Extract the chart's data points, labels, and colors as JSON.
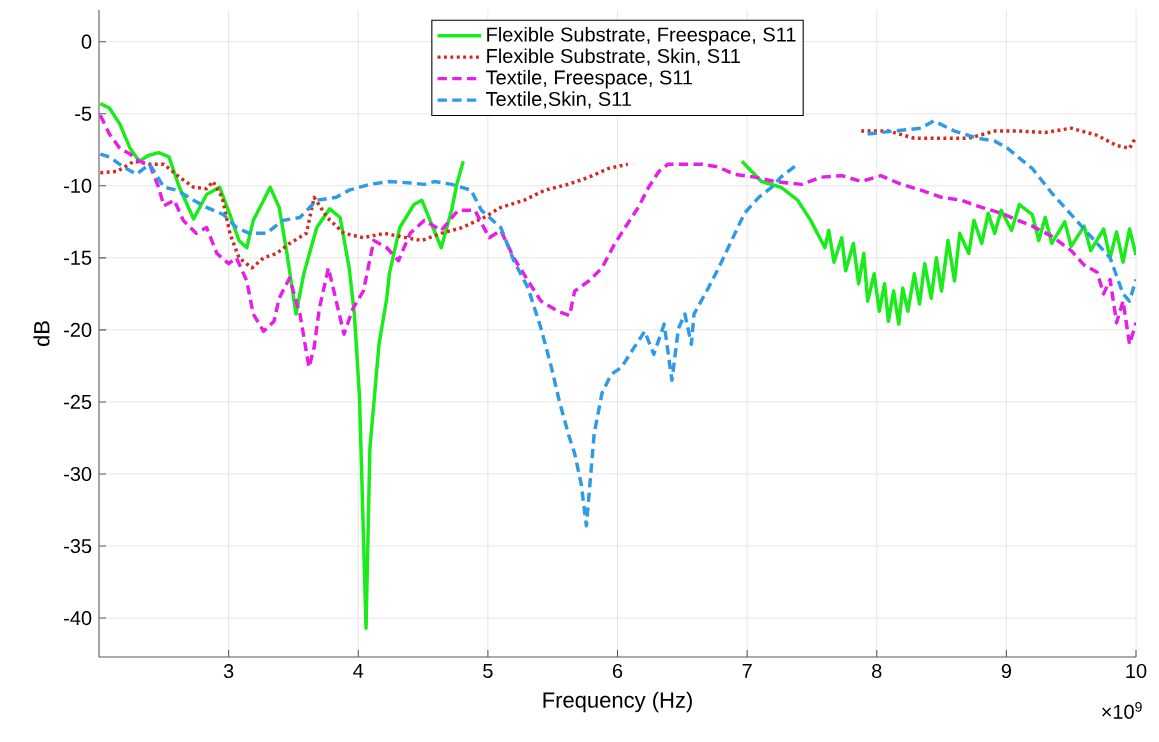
{
  "chart_data": {
    "type": "line",
    "xlabel": "Frequency (Hz)",
    "ylabel": "dB",
    "xlim": [
      2,
      10
    ],
    "ylim": [
      -42.7,
      2.2
    ],
    "xticks": [
      3,
      4,
      5,
      6,
      7,
      8,
      9,
      10
    ],
    "yticks": [
      -40,
      -35,
      -30,
      -25,
      -20,
      -15,
      -10,
      -5,
      0
    ],
    "grid": true,
    "legend": "top",
    "marker": "none",
    "annotations": [
      "×10$^{9}$"
    ],
    "series": [
      {
        "name": "Flexible Substrate, Freespace, S11",
        "color": "#1aeb1a",
        "line_style": "solid",
        "x": [
          2.01,
          2.08,
          2.16,
          2.24,
          2.31,
          2.38,
          2.46,
          2.54,
          2.62,
          2.73,
          2.83,
          2.93,
          3.01,
          3.08,
          3.14,
          3.19,
          3.27,
          3.32,
          3.39,
          3.45,
          3.52,
          3.58,
          3.68,
          3.78,
          3.86,
          3.93,
          3.97,
          4.01,
          4.06,
          4.09,
          4.16,
          4.22,
          4.24,
          4.32,
          4.43,
          4.49,
          4.64,
          4.72,
          4.76,
          4.81,
          5.5,
          6.96,
          7.11,
          7.26,
          7.39,
          7.49,
          7.6,
          7.63,
          7.67,
          7.73,
          7.76,
          7.82,
          7.86,
          7.9,
          7.93,
          7.98,
          8.02,
          8.06,
          8.09,
          8.13,
          8.17,
          8.2,
          8.24,
          8.29,
          8.33,
          8.37,
          8.42,
          8.46,
          8.5,
          8.55,
          8.6,
          8.64,
          8.71,
          8.75,
          8.81,
          8.86,
          8.91,
          8.96,
          9.04,
          9.1,
          9.2,
          9.25,
          9.3,
          9.35,
          9.45,
          9.5,
          9.6,
          9.65,
          9.75,
          9.8,
          9.85,
          9.9,
          9.95,
          10.0
        ],
        "values": [
          -4.3,
          -4.6,
          -5.7,
          -7.4,
          -8.3,
          -7.9,
          -7.7,
          -8.0,
          -10.1,
          -12.3,
          -10.6,
          -10.1,
          -12.0,
          -13.8,
          -14.3,
          -12.4,
          -11.0,
          -10.1,
          -11.5,
          -14.7,
          -18.9,
          -16.1,
          -12.9,
          -11.6,
          -12.2,
          -15.7,
          -18.9,
          -24.7,
          -40.7,
          -28.2,
          -21.0,
          -17.8,
          -16.1,
          -12.9,
          -11.3,
          -11.0,
          -14.3,
          -11.7,
          -9.9,
          -8.3,
          null,
          -8.3,
          -9.7,
          -10.1,
          -11.0,
          -12.4,
          -14.3,
          -13.1,
          -15.3,
          -13.6,
          -15.9,
          -14.0,
          -16.8,
          -14.7,
          -18.0,
          -16.1,
          -18.7,
          -16.8,
          -19.4,
          -17.3,
          -19.6,
          -17.1,
          -18.7,
          -16.1,
          -18.2,
          -15.4,
          -17.8,
          -15.0,
          -17.3,
          -13.8,
          -16.6,
          -13.3,
          -14.7,
          -12.4,
          -14.0,
          -11.9,
          -13.3,
          -11.7,
          -13.1,
          -11.3,
          -12.0,
          -13.8,
          -12.2,
          -14.0,
          -12.5,
          -14.2,
          -12.8,
          -14.5,
          -13.0,
          -15.0,
          -13.2,
          -15.3,
          -13.0,
          -14.8
        ]
      },
      {
        "name": "Flexible Substrate, Skin, S11",
        "color": "#d42a1e",
        "line_style": "dotted",
        "x": [
          2.01,
          2.14,
          2.27,
          2.39,
          2.5,
          2.62,
          2.73,
          2.83,
          2.88,
          2.95,
          3.01,
          3.08,
          3.18,
          3.27,
          3.37,
          3.47,
          3.6,
          3.66,
          3.76,
          3.89,
          4.04,
          4.2,
          4.37,
          4.49,
          4.64,
          4.8,
          4.97,
          5.1,
          5.28,
          5.44,
          5.62,
          5.78,
          5.93,
          6.08,
          7.0,
          7.88,
          8.09,
          8.29,
          8.5,
          8.71,
          8.91,
          9.09,
          9.3,
          9.5,
          9.7,
          9.85,
          9.95,
          10.0
        ],
        "values": [
          -9.1,
          -9.0,
          -8.3,
          -8.5,
          -8.5,
          -9.4,
          -10.1,
          -10.2,
          -9.7,
          -10.8,
          -13.3,
          -15.0,
          -15.7,
          -15.0,
          -14.7,
          -14.0,
          -13.3,
          -10.8,
          -12.2,
          -13.3,
          -13.6,
          -13.3,
          -13.6,
          -13.8,
          -13.3,
          -12.9,
          -12.2,
          -11.5,
          -11.0,
          -10.3,
          -9.9,
          -9.4,
          -8.8,
          -8.5,
          null,
          -6.2,
          -6.2,
          -6.7,
          -6.7,
          -6.7,
          -6.2,
          -6.2,
          -6.3,
          -6.0,
          -6.5,
          -7.2,
          -7.4,
          -6.6
        ]
      },
      {
        "name": "Textile, Freespace, S11",
        "color": "#e61ee6",
        "line_style": "dashed",
        "x": [
          2.01,
          2.08,
          2.16,
          2.24,
          2.31,
          2.39,
          2.46,
          2.5,
          2.58,
          2.65,
          2.75,
          2.83,
          2.91,
          3.0,
          3.06,
          3.14,
          3.19,
          3.27,
          3.35,
          3.39,
          3.47,
          3.55,
          3.62,
          3.66,
          3.7,
          3.77,
          3.83,
          3.89,
          3.96,
          4.04,
          4.12,
          4.22,
          4.31,
          4.4,
          4.51,
          4.64,
          4.77,
          4.9,
          5.01,
          5.1,
          5.2,
          5.31,
          5.41,
          5.54,
          5.63,
          5.67,
          5.78,
          5.88,
          5.98,
          6.08,
          6.16,
          6.24,
          6.32,
          6.39,
          6.52,
          6.65,
          6.78,
          6.9,
          7.06,
          7.21,
          7.42,
          7.57,
          7.73,
          7.88,
          8.03,
          8.19,
          8.34,
          8.5,
          8.65,
          8.81,
          8.96,
          9.09,
          9.2,
          9.35,
          9.5,
          9.6,
          9.7,
          9.75,
          9.8,
          9.85,
          9.9,
          9.95,
          10.0
        ],
        "values": [
          -5.1,
          -6.4,
          -7.4,
          -7.8,
          -8.3,
          -8.5,
          -10.1,
          -11.4,
          -11.0,
          -12.4,
          -13.3,
          -12.9,
          -14.7,
          -15.4,
          -15.0,
          -16.6,
          -18.9,
          -20.1,
          -19.4,
          -17.8,
          -16.4,
          -18.9,
          -22.6,
          -21.2,
          -18.5,
          -15.7,
          -18.0,
          -20.3,
          -18.5,
          -17.3,
          -13.8,
          -14.3,
          -15.2,
          -13.3,
          -12.4,
          -13.1,
          -11.7,
          -11.7,
          -13.6,
          -13.1,
          -15.0,
          -16.6,
          -18.0,
          -18.7,
          -19.0,
          -17.3,
          -16.6,
          -15.7,
          -14.0,
          -12.6,
          -11.5,
          -10.1,
          -9.0,
          -8.5,
          -8.5,
          -8.5,
          -8.7,
          -9.2,
          -9.4,
          -9.7,
          -9.9,
          -9.4,
          -9.3,
          -9.7,
          -9.3,
          -9.9,
          -10.3,
          -10.8,
          -11.0,
          -11.5,
          -11.9,
          -12.4,
          -12.8,
          -13.5,
          -14.5,
          -15.5,
          -16.0,
          -17.5,
          -16.5,
          -19.5,
          -18.0,
          -21.0,
          -19.5
        ]
      },
      {
        "name": "Textile,Skin, S11",
        "color": "#2f9be6",
        "line_style": "dashed",
        "x": [
          2.01,
          2.08,
          2.19,
          2.29,
          2.39,
          2.5,
          2.6,
          2.73,
          2.83,
          2.96,
          3.06,
          3.16,
          3.29,
          3.42,
          3.55,
          3.68,
          3.83,
          3.93,
          4.09,
          4.24,
          4.4,
          4.51,
          4.59,
          4.72,
          4.87,
          4.95,
          5.1,
          5.2,
          5.31,
          5.41,
          5.49,
          5.55,
          5.62,
          5.67,
          5.72,
          5.76,
          5.82,
          5.88,
          5.95,
          6.03,
          6.13,
          6.21,
          6.28,
          6.36,
          6.42,
          6.47,
          6.52,
          6.57,
          6.59,
          6.7,
          6.78,
          6.88,
          6.98,
          7.09,
          7.19,
          7.26,
          7.39,
          7.6,
          7.93,
          8.14,
          8.34,
          8.44,
          8.6,
          8.78,
          8.91,
          9.01,
          9.09,
          9.2,
          9.35,
          9.5,
          9.65,
          9.8,
          9.9,
          9.95,
          10.0
        ],
        "values": [
          -7.8,
          -8.0,
          -8.7,
          -9.2,
          -8.5,
          -10.1,
          -10.3,
          -11.0,
          -11.5,
          -12.0,
          -12.9,
          -13.3,
          -13.3,
          -12.4,
          -12.2,
          -11.0,
          -10.8,
          -10.3,
          -9.9,
          -9.7,
          -9.8,
          -9.9,
          -9.7,
          -9.9,
          -10.3,
          -11.7,
          -12.9,
          -15.2,
          -17.1,
          -19.9,
          -22.6,
          -24.9,
          -27.2,
          -28.6,
          -30.7,
          -33.6,
          -27.2,
          -24.4,
          -23.1,
          -22.6,
          -21.2,
          -20.1,
          -21.7,
          -19.6,
          -23.5,
          -19.9,
          -18.9,
          -21.0,
          -18.9,
          -17.1,
          -15.7,
          -13.8,
          -11.9,
          -10.8,
          -10.1,
          -9.4,
          -8.5,
          null,
          -6.4,
          -6.2,
          -6.0,
          -5.5,
          -6.2,
          -6.7,
          -6.9,
          -7.4,
          -8.0,
          -8.8,
          -10.5,
          -12.0,
          -13.5,
          -15.0,
          -17.5,
          -18.0,
          -16.5
        ]
      }
    ]
  }
}
